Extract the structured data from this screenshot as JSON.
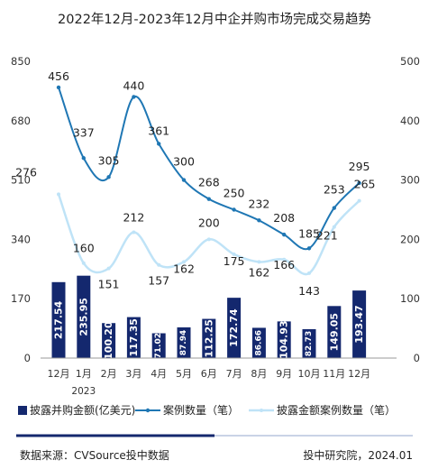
{
  "chart_data": {
    "type": "bar+line",
    "title": "2022年12月-2023年12月中企并购市场完成交易趋势",
    "categories": [
      "12月",
      "1月",
      "2月",
      "3月",
      "4月",
      "5月",
      "6月",
      "7月",
      "8月",
      "9月",
      "10月",
      "11月",
      "12月"
    ],
    "category_sub": [
      "",
      "2023",
      "",
      "",
      "",
      "",
      "",
      "",
      "",
      "",
      "",
      "",
      ""
    ],
    "y_left": {
      "ticks": [
        "0",
        "170",
        "340",
        "510",
        "680",
        "850"
      ],
      "range": [
        0,
        850
      ]
    },
    "y_right": {
      "ticks": [
        "0",
        "100",
        "200",
        "300",
        "400",
        "500"
      ],
      "range": [
        0,
        500
      ]
    },
    "grid": false,
    "legend_position": "bottom",
    "series": [
      {
        "name": "披露并购金额(亿美元)",
        "type": "bar",
        "axis": "left",
        "color": "#14286e",
        "values": [
          217.54,
          235.95,
          100.2,
          117.35,
          71.02,
          87.94,
          112.25,
          172.74,
          86.66,
          104.93,
          82.73,
          149.05,
          193.47
        ],
        "labels": [
          "217.54",
          "235.95",
          "100.20",
          "117.35",
          "71.02",
          "87.94",
          "112.25",
          "172.74",
          "86.66",
          "104.93",
          "82.73",
          "149.05",
          "193.47"
        ]
      },
      {
        "name": "案例数量（笔）",
        "type": "line",
        "axis": "right",
        "color": "#1f77b4",
        "values": [
          456,
          337,
          305,
          440,
          361,
          300,
          268,
          250,
          232,
          208,
          185,
          253,
          295
        ],
        "labels": [
          "456",
          "337",
          "305",
          "440",
          "361",
          "300",
          "268",
          "250",
          "232",
          "208",
          "185",
          "253",
          "295"
        ]
      },
      {
        "name": "披露金额案例数量（笔）",
        "type": "line",
        "axis": "right",
        "color": "#bfe3f7",
        "values": [
          276,
          160,
          151,
          212,
          157,
          162,
          200,
          175,
          162,
          166,
          143,
          221,
          265
        ],
        "labels": [
          "276",
          "160",
          "151",
          "212",
          "157",
          "162",
          "200",
          "175",
          "162",
          "166",
          "143",
          "221",
          "265"
        ]
      }
    ]
  },
  "footer": {
    "source": "数据来源：CVSource投中数据",
    "credit": "投中研究院，2024.01"
  }
}
